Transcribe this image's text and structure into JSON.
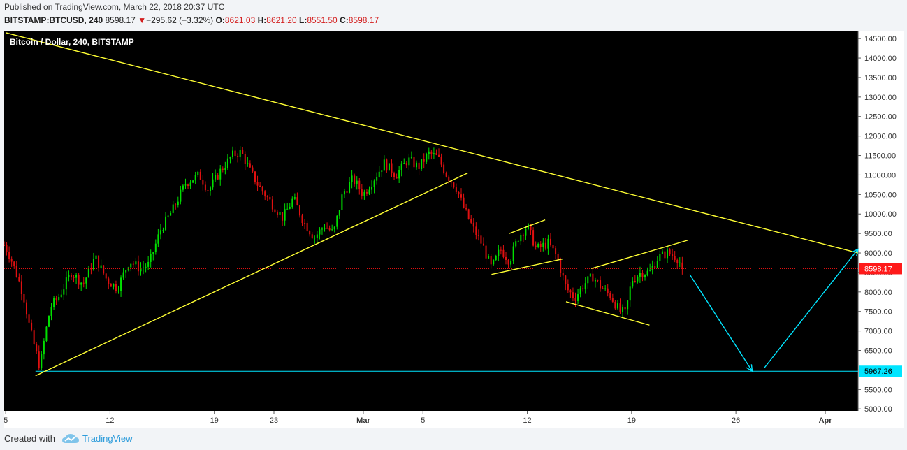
{
  "header": {
    "published": "Published on TradingView.com, March 22, 2018 20:37 UTC",
    "symbol": "BITSTAMP:BTCUSD, 240",
    "last": "8598.17",
    "change": "−295.62 (−3.32%)",
    "o_label": "O:",
    "o_value": "8621.03",
    "h_label": "H:",
    "h_value": "8621.20",
    "l_label": "L:",
    "l_value": "8551.50",
    "c_label": "C:",
    "c_value": "8598.17"
  },
  "footer": {
    "created_with": "Created with",
    "brand": "TradingView"
  },
  "colors": {
    "background": "#000000",
    "up": "#00e000",
    "down": "#e01010",
    "trendline": "#ffff33",
    "support": "#00e5ff",
    "price_line": "#e01010"
  },
  "chart_data": {
    "type": "candlestick",
    "title": "Bitcoin / Dollar, 240, BITSTAMP",
    "x_ticks": [
      {
        "label": "5",
        "day": 5
      },
      {
        "label": "12",
        "day": 12
      },
      {
        "label": "19",
        "day": 19
      },
      {
        "label": "23",
        "day": 23
      },
      {
        "label": "Mar",
        "day": 29
      },
      {
        "label": "5",
        "day": 33
      },
      {
        "label": "12",
        "day": 40
      },
      {
        "label": "19",
        "day": 47
      },
      {
        "label": "26",
        "day": 54
      },
      {
        "label": "Apr",
        "day": 60
      }
    ],
    "y_ticks": [
      5000,
      5500,
      6000,
      6500,
      7000,
      7500,
      8000,
      8500,
      9000,
      9500,
      10000,
      10500,
      11000,
      11500,
      12000,
      12500,
      13000,
      13500,
      14000,
      14500
    ],
    "ylim": [
      4950,
      14700
    ],
    "xlim": [
      4.9,
      62.2
    ],
    "current_price": 8598.17,
    "current_price_label": "8598.17",
    "support_level": 5967.26,
    "support_label": "5967.26",
    "anchors": [
      {
        "day": 4.9,
        "price": 9200
      },
      {
        "day": 5.2,
        "price": 9000
      },
      {
        "day": 5.7,
        "price": 8500
      },
      {
        "day": 6.2,
        "price": 7900
      },
      {
        "day": 6.6,
        "price": 7100
      },
      {
        "day": 7.0,
        "price": 6500
      },
      {
        "day": 7.3,
        "price": 6050
      },
      {
        "day": 7.6,
        "price": 6800
      },
      {
        "day": 8.0,
        "price": 7600
      },
      {
        "day": 8.6,
        "price": 7900
      },
      {
        "day": 9.4,
        "price": 8500
      },
      {
        "day": 10.2,
        "price": 8200
      },
      {
        "day": 11.0,
        "price": 8900
      },
      {
        "day": 11.8,
        "price": 8300
      },
      {
        "day": 12.5,
        "price": 8100
      },
      {
        "day": 13.3,
        "price": 8800
      },
      {
        "day": 14.0,
        "price": 8600
      },
      {
        "day": 14.6,
        "price": 8700
      },
      {
        "day": 15.4,
        "price": 9600
      },
      {
        "day": 16.2,
        "price": 10100
      },
      {
        "day": 17.1,
        "price": 10800
      },
      {
        "day": 18.0,
        "price": 11000
      },
      {
        "day": 18.6,
        "price": 10600
      },
      {
        "day": 19.4,
        "price": 11100
      },
      {
        "day": 20.2,
        "price": 11500
      },
      {
        "day": 20.8,
        "price": 11600
      },
      {
        "day": 21.4,
        "price": 11100
      },
      {
        "day": 22.0,
        "price": 10700
      },
      {
        "day": 22.8,
        "price": 10300
      },
      {
        "day": 23.6,
        "price": 9900
      },
      {
        "day": 24.3,
        "price": 10400
      },
      {
        "day": 25.0,
        "price": 9800
      },
      {
        "day": 25.7,
        "price": 9400
      },
      {
        "day": 26.4,
        "price": 9700
      },
      {
        "day": 27.0,
        "price": 9500
      },
      {
        "day": 27.6,
        "price": 10500
      },
      {
        "day": 28.3,
        "price": 10900
      },
      {
        "day": 29.0,
        "price": 10500
      },
      {
        "day": 29.7,
        "price": 10900
      },
      {
        "day": 30.4,
        "price": 11300
      },
      {
        "day": 31.2,
        "price": 11000
      },
      {
        "day": 32.0,
        "price": 11400
      },
      {
        "day": 32.7,
        "price": 11200
      },
      {
        "day": 33.4,
        "price": 11550
      },
      {
        "day": 34.0,
        "price": 11450
      },
      {
        "day": 34.6,
        "price": 11000
      },
      {
        "day": 35.2,
        "price": 10700
      },
      {
        "day": 35.8,
        "price": 10100
      },
      {
        "day": 36.4,
        "price": 9600
      },
      {
        "day": 37.0,
        "price": 9200
      },
      {
        "day": 37.6,
        "price": 8600
      },
      {
        "day": 38.2,
        "price": 9100
      },
      {
        "day": 38.8,
        "price": 8800
      },
      {
        "day": 39.4,
        "price": 9400
      },
      {
        "day": 40.0,
        "price": 9700
      },
      {
        "day": 40.6,
        "price": 9100
      },
      {
        "day": 41.4,
        "price": 9250
      },
      {
        "day": 42.0,
        "price": 8900
      },
      {
        "day": 42.6,
        "price": 8100
      },
      {
        "day": 43.2,
        "price": 7850
      },
      {
        "day": 43.8,
        "price": 8200
      },
      {
        "day": 44.4,
        "price": 8400
      },
      {
        "day": 45.0,
        "price": 8100
      },
      {
        "day": 45.6,
        "price": 7900
      },
      {
        "day": 46.2,
        "price": 7500
      },
      {
        "day": 46.6,
        "price": 7450
      },
      {
        "day": 47.0,
        "price": 8300
      },
      {
        "day": 47.6,
        "price": 8500
      },
      {
        "day": 48.2,
        "price": 8500
      },
      {
        "day": 48.8,
        "price": 8900
      },
      {
        "day": 49.4,
        "price": 9000
      },
      {
        "day": 50.0,
        "price": 8900
      },
      {
        "day": 50.5,
        "price": 8598
      }
    ],
    "trendlines": [
      {
        "name": "descending-resistance",
        "x1": 5.0,
        "y1": 14650,
        "x2": 62.2,
        "y2": 9000
      },
      {
        "name": "ascending-support",
        "x1": 7.0,
        "y1": 5850,
        "x2": 36.0,
        "y2": 11050
      },
      {
        "name": "flag1-upper",
        "x1": 38.8,
        "y1": 9500,
        "x2": 41.2,
        "y2": 9850
      },
      {
        "name": "flag1-lower",
        "x1": 37.6,
        "y1": 8450,
        "x2": 42.4,
        "y2": 8850
      },
      {
        "name": "wedge-upper",
        "x1": 44.3,
        "y1": 8600,
        "x2": 50.8,
        "y2": 9330
      },
      {
        "name": "wedge-lower",
        "x1": 42.6,
        "y1": 7750,
        "x2": 48.2,
        "y2": 7150
      }
    ],
    "arrows": [
      {
        "name": "down-arrow",
        "x1": 50.9,
        "y1": 8450,
        "x2": 55.1,
        "y2": 5967
      },
      {
        "name": "up-arrow",
        "x1": 55.9,
        "y1": 6050,
        "x2": 62.2,
        "y2": 9100
      }
    ]
  }
}
